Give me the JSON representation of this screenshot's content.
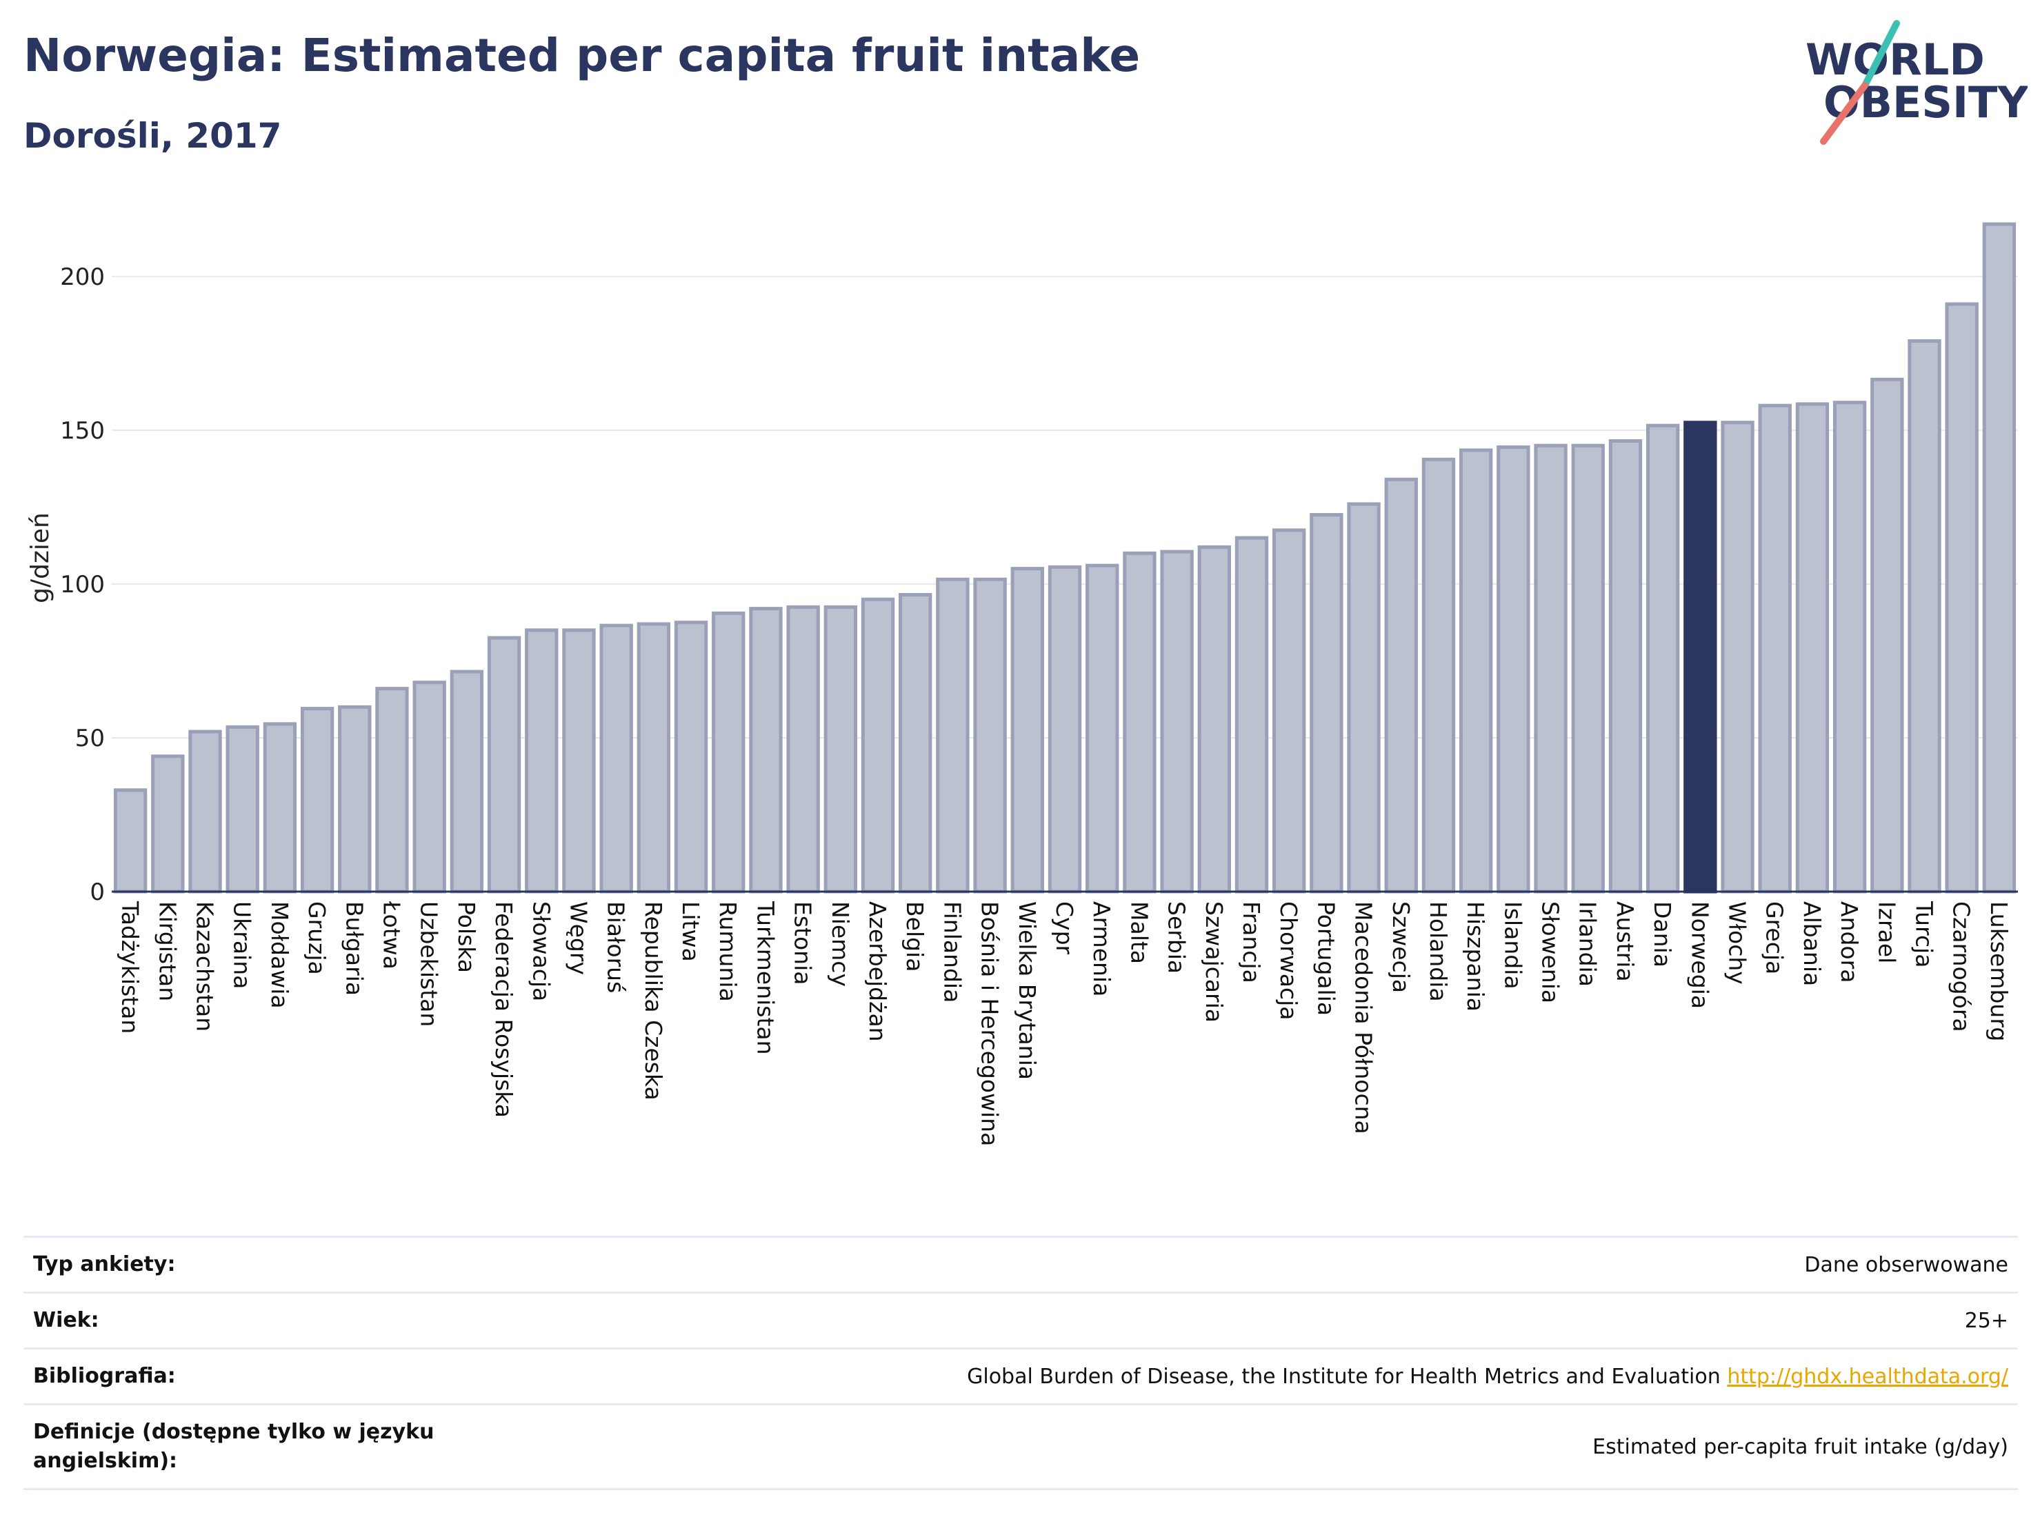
{
  "header": {
    "title": "Norwegia: Estimated per capita fruit intake",
    "subtitle": "Dorośli, 2017",
    "logo": {
      "line1": "WORLD",
      "line2": "OBESITY",
      "text_color": "#2a3560",
      "stroke_colors": [
        "#3cc0b4",
        "#e8736a"
      ]
    }
  },
  "colors": {
    "bar": "#bcc1d0",
    "bar_border": "#9aa0b8",
    "highlight": "#2a3560",
    "grid": "#e6e8ee",
    "axis": "#2a3560"
  },
  "chart_data": {
    "type": "bar",
    "title": "Norwegia: Estimated per capita fruit intake",
    "ylabel": "g/dzień",
    "xlabel": "",
    "ylim": [
      0,
      217
    ],
    "yticks": [
      0,
      50,
      100,
      150,
      200
    ],
    "grid": true,
    "highlight": "Norwegia",
    "categories": [
      "Tadżykistan",
      "Kirgistan",
      "Kazachstan",
      "Ukraina",
      "Mołdawia",
      "Gruzja",
      "Bułgaria",
      "Łotwa",
      "Uzbekistan",
      "Polska",
      "Federacja Rosyjska",
      "Słowacja",
      "Węgry",
      "Białoruś",
      "Republika Czeska",
      "Litwa",
      "Rumunia",
      "Turkmenistan",
      "Estonia",
      "Niemcy",
      "Azerbejdżan",
      "Belgia",
      "Finlandia",
      "Bośnia i Hercegowina",
      "Wielka Brytania",
      "Cypr",
      "Armenia",
      "Malta",
      "Serbia",
      "Szwajcaria",
      "Francja",
      "Chorwacja",
      "Portugalia",
      "Macedonia Północna",
      "Szwecja",
      "Holandia",
      "Hiszpania",
      "Islandia",
      "Słowenia",
      "Irlandia",
      "Austria",
      "Dania",
      "Norwegia",
      "Włochy",
      "Grecja",
      "Albania",
      "Andora",
      "Izrael",
      "Turcja",
      "Czarnogóra",
      "Luksemburg"
    ],
    "values": [
      33,
      44,
      52,
      53.5,
      54.5,
      59.5,
      60,
      66,
      68,
      71.5,
      82.5,
      85,
      85,
      86.5,
      87,
      87.5,
      90.5,
      92,
      92.5,
      92.5,
      95,
      96.5,
      101.5,
      101.5,
      105,
      105.5,
      106,
      110,
      110.5,
      112,
      115,
      117.5,
      122.5,
      126,
      134,
      140.5,
      143.5,
      144.5,
      145,
      145,
      146.5,
      151.5,
      152.5,
      152.5,
      158,
      158.5,
      159,
      166.5,
      179,
      191,
      217
    ]
  },
  "info_table": [
    {
      "key": "Typ ankiety:",
      "value": "Dane obserwowane",
      "link": ""
    },
    {
      "key": "Wiek:",
      "value": "25+",
      "link": ""
    },
    {
      "key": "Bibliografia:",
      "value": "Global Burden of Disease, the Institute for Health Metrics and Evaluation",
      "link": "http://ghdx.healthdata.org/"
    },
    {
      "key": "Definicje (dostępne tylko w języku angielskim):",
      "value": "Estimated per-capita fruit intake (g/day)",
      "link": ""
    }
  ]
}
